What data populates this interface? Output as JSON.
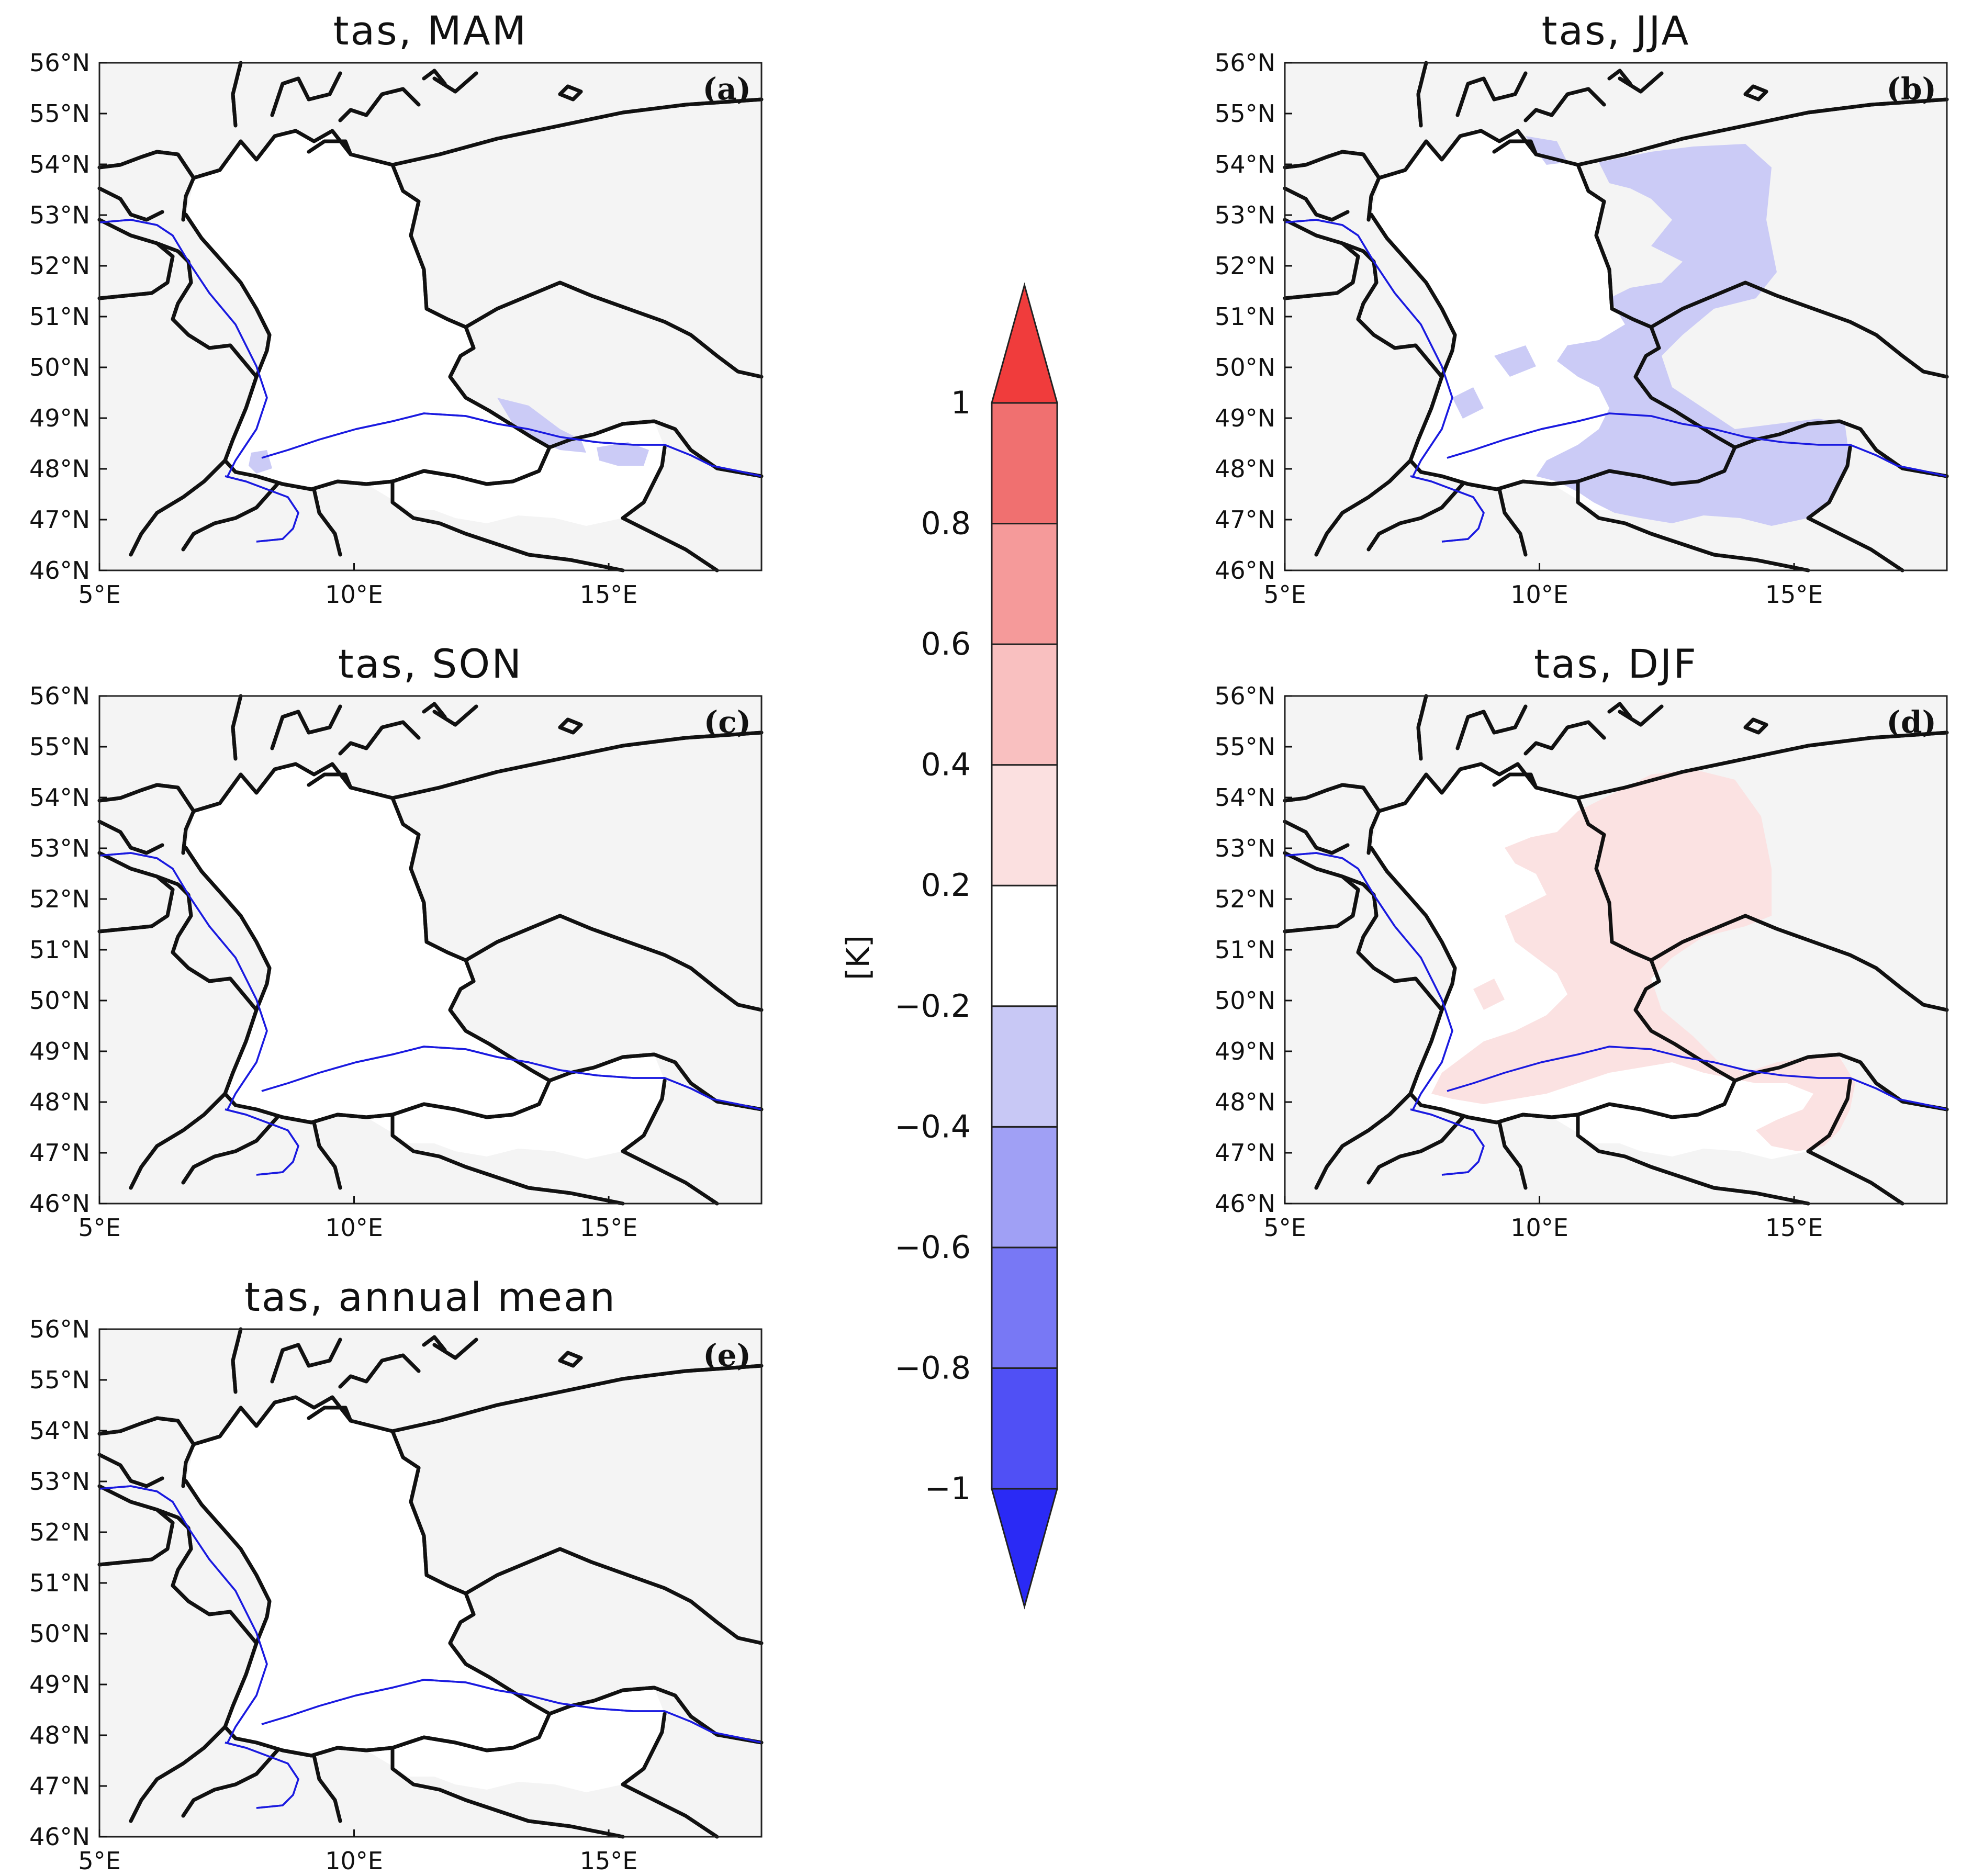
{
  "figure": {
    "colorbar": {
      "unit_label": "[K]",
      "levels": [
        -1,
        -0.8,
        -0.6,
        -0.4,
        -0.2,
        0.2,
        0.4,
        0.6,
        0.8,
        1
      ],
      "tick_labels": [
        "−1",
        "−0.8",
        "−0.6",
        "−0.4",
        "−0.2",
        "0.2",
        "0.4",
        "0.6",
        "0.8",
        "1"
      ],
      "bin_colors": [
        "#2a2af5",
        "#5050f5",
        "#7878f5",
        "#a0a0f5",
        "#c8c8f5",
        "#ffffff",
        "#fbe0e0",
        "#f9c0c0",
        "#f59a9a",
        "#f07070",
        "#f03c3c"
      ],
      "extend": "both"
    },
    "axes": {
      "lat_labels": [
        "46°N",
        "47°N",
        "48°N",
        "49°N",
        "50°N",
        "51°N",
        "52°N",
        "53°N",
        "54°N",
        "55°N",
        "56°N"
      ],
      "lat_values": [
        46,
        47,
        48,
        49,
        50,
        51,
        52,
        53,
        54,
        55,
        56
      ],
      "lon_labels": [
        "5°E",
        "10°E",
        "15°E"
      ],
      "lon_values": [
        5,
        10,
        15
      ],
      "lat_range": [
        46,
        56
      ],
      "lon_range": [
        5,
        18
      ]
    },
    "colors": {
      "ocean_background": "#f4f4f4",
      "land_neutral": "#ffffff",
      "borders": "#111111",
      "rivers": "#1a1ae0"
    },
    "panels": [
      {
        "title": "tas, MAM",
        "label": "(a)",
        "anomaly_bin": "-0.4 to -0.2 in small patches",
        "dominant": "-0.2 to 0.2"
      },
      {
        "title": "tas, JJA",
        "label": "(b)",
        "anomaly_bin": "-0.4 to -0.2 over east and south",
        "dominant": "-0.2 to 0.2"
      },
      {
        "title": "tas, SON",
        "label": "(c)",
        "dominant": "-0.2 to 0.2"
      },
      {
        "title": "tas, DJF",
        "label": "(d)",
        "anomaly_bin": "0.2 to 0.4 over east and south",
        "dominant": "-0.2 to 0.2"
      },
      {
        "title": "tas, annual mean",
        "label": "(e)",
        "dominant": "-0.2 to 0.2"
      }
    ]
  }
}
